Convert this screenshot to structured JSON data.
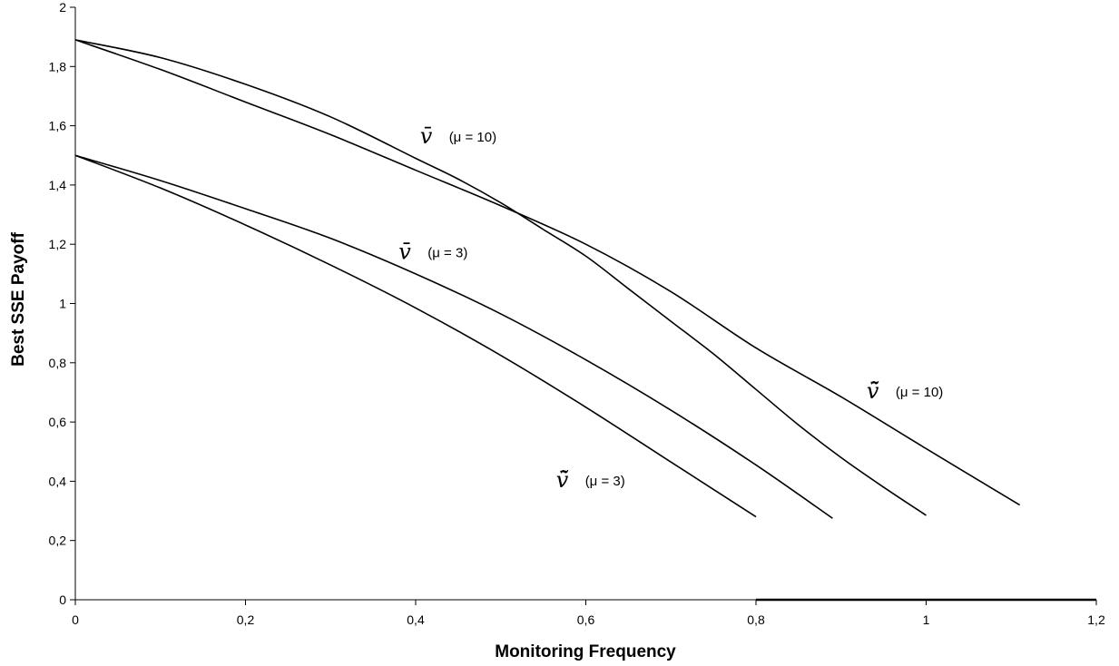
{
  "chart_data": {
    "type": "line",
    "xlabel": "Monitoring Frequency",
    "ylabel": "Best SSE Payoff",
    "xlim": [
      0,
      1.2
    ],
    "ylim": [
      0,
      2
    ],
    "x_ticks": [
      "0",
      "0,2",
      "0,4",
      "0,6",
      "0,8",
      "1",
      "1,2"
    ],
    "y_ticks": [
      "0",
      "0,2",
      "0,4",
      "0,6",
      "0,8",
      "1",
      "1,2",
      "1,4",
      "1,6",
      "1,8",
      "2"
    ],
    "grid": false,
    "colors": {
      "line": "#000000",
      "axis": "#000000",
      "background": "#ffffff"
    },
    "series": [
      {
        "x": [
          0,
          0.1,
          0.2,
          0.3,
          0.4,
          0.45,
          0.5,
          0.55,
          0.6,
          0.65,
          0.7,
          0.75,
          0.8,
          0.85,
          0.9,
          0.95,
          1.0
        ],
        "y": [
          1.89,
          1.83,
          1.74,
          1.63,
          1.49,
          1.42,
          1.34,
          1.25,
          1.16,
          1.05,
          0.94,
          0.83,
          0.71,
          0.59,
          0.48,
          0.38,
          0.285
        ]
      },
      {
        "x": [
          0,
          0.1,
          0.2,
          0.3,
          0.4,
          0.5,
          0.6,
          0.7,
          0.8,
          0.9,
          1.0,
          1.11
        ],
        "y": [
          1.89,
          1.79,
          1.68,
          1.57,
          1.45,
          1.33,
          1.2,
          1.04,
          0.85,
          0.685,
          0.51,
          0.32
        ]
      },
      {
        "x": [
          0,
          0.1,
          0.2,
          0.3,
          0.4,
          0.5,
          0.6,
          0.7,
          0.8,
          0.89
        ],
        "y": [
          1.5,
          1.415,
          1.32,
          1.22,
          1.1,
          0.965,
          0.81,
          0.64,
          0.455,
          0.275
        ]
      },
      {
        "x": [
          0,
          0.1,
          0.2,
          0.3,
          0.4,
          0.5,
          0.6,
          0.7,
          0.8
        ],
        "y": [
          1.5,
          1.39,
          1.265,
          1.13,
          0.985,
          0.825,
          0.65,
          0.465,
          0.28
        ]
      }
    ],
    "annotations": [
      {
        "symbol": "v̄",
        "text": "(μ = 10)",
        "x": 0.405,
        "y": 1.54
      },
      {
        "symbol": "v̄",
        "text": "(μ = 3)",
        "x": 0.38,
        "y": 1.15
      },
      {
        "symbol": "ṽ̄",
        "text": "(μ = 10)",
        "x": 0.93,
        "y": 0.68
      },
      {
        "symbol": "ṽ̄",
        "text": "(μ = 3)",
        "x": 0.565,
        "y": 0.38
      }
    ],
    "baseline_segment": {
      "x": [
        0.8,
        1.2
      ],
      "y": [
        0,
        0
      ]
    }
  }
}
